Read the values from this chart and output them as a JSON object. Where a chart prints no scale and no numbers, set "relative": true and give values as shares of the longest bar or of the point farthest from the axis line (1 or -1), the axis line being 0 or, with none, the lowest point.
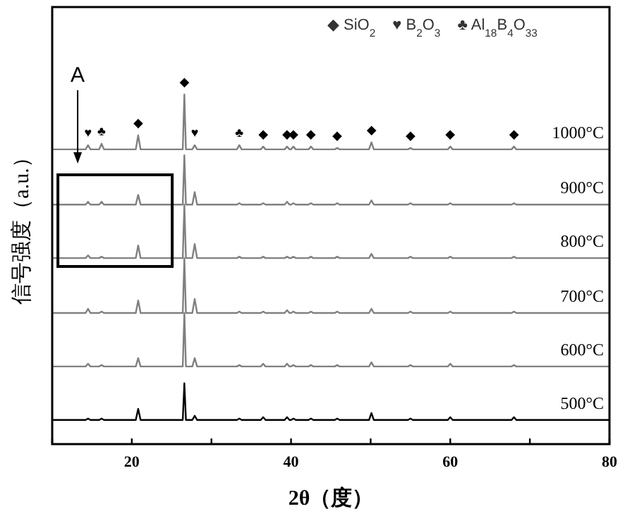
{
  "chart_data": {
    "type": "line",
    "relative": true,
    "xlabel": "2θ（度）",
    "ylabel": "信号强度（a.u.）",
    "xlim": [
      10,
      80
    ],
    "xticks": [
      {
        "value": 10,
        "label": null
      },
      20,
      {
        "value": 30,
        "label": null
      },
      40,
      {
        "value": 50,
        "label": null
      },
      60,
      {
        "value": 70,
        "label": null
      },
      80
    ],
    "x": [
      10,
      14.2,
      14.5,
      14.8,
      15.9,
      16.2,
      16.5,
      20.5,
      20.8,
      21.1,
      26.4,
      26.6,
      26.8,
      27.6,
      27.9,
      28.2,
      33.2,
      33.5,
      33.8,
      36.2,
      36.5,
      36.8,
      39.2,
      39.5,
      39.8,
      40.0,
      40.3,
      40.6,
      42.2,
      42.5,
      42.8,
      45.5,
      45.8,
      46.1,
      49.8,
      50.1,
      50.4,
      54.7,
      55,
      55.3,
      59.7,
      60,
      60.3,
      67.7,
      68,
      68.3,
      80
    ],
    "series": [
      {
        "name": "1000°C",
        "color": "#808080",
        "values": [
          0.843,
          0.843,
          0.855,
          0.843,
          0.843,
          0.859,
          0.843,
          0.843,
          0.883,
          0.843,
          0.843,
          1.0,
          0.843,
          0.843,
          0.855,
          0.843,
          0.843,
          0.855,
          0.843,
          0.843,
          0.851,
          0.843,
          0.843,
          0.851,
          0.843,
          0.843,
          0.851,
          0.843,
          0.843,
          0.851,
          0.843,
          0.843,
          0.847,
          0.843,
          0.843,
          0.863,
          0.843,
          0.843,
          0.847,
          0.843,
          0.843,
          0.851,
          0.843,
          0.843,
          0.851,
          0.843,
          0.843
        ]
      },
      {
        "name": "900°C",
        "color": "#808080",
        "values": [
          0.685,
          0.685,
          0.693,
          0.685,
          0.685,
          0.693,
          0.685,
          0.685,
          0.713,
          0.685,
          0.685,
          0.826,
          0.685,
          0.685,
          0.721,
          0.685,
          0.685,
          0.689,
          0.685,
          0.685,
          0.689,
          0.685,
          0.685,
          0.693,
          0.685,
          0.685,
          0.689,
          0.685,
          0.685,
          0.689,
          0.685,
          0.685,
          0.689,
          0.685,
          0.685,
          0.697,
          0.685,
          0.685,
          0.689,
          0.685,
          0.685,
          0.689,
          0.685,
          0.685,
          0.689,
          0.685,
          0.685
        ]
      },
      {
        "name": "800°C",
        "color": "#808080",
        "values": [
          0.532,
          0.532,
          0.54,
          0.532,
          0.532,
          0.536,
          0.532,
          0.532,
          0.568,
          0.532,
          0.532,
          0.685,
          0.532,
          0.532,
          0.572,
          0.532,
          0.532,
          0.536,
          0.532,
          0.532,
          0.536,
          0.532,
          0.532,
          0.536,
          0.532,
          0.532,
          0.536,
          0.532,
          0.532,
          0.536,
          0.532,
          0.532,
          0.536,
          0.532,
          0.532,
          0.544,
          0.532,
          0.532,
          0.536,
          0.532,
          0.532,
          0.536,
          0.532,
          0.532,
          0.536,
          0.532,
          0.532
        ]
      },
      {
        "name": "700°C",
        "color": "#808080",
        "values": [
          0.375,
          0.375,
          0.387,
          0.375,
          0.375,
          0.379,
          0.375,
          0.375,
          0.411,
          0.375,
          0.375,
          0.532,
          0.375,
          0.375,
          0.415,
          0.375,
          0.375,
          0.379,
          0.375,
          0.375,
          0.379,
          0.375,
          0.375,
          0.383,
          0.375,
          0.375,
          0.379,
          0.375,
          0.375,
          0.379,
          0.375,
          0.375,
          0.379,
          0.375,
          0.375,
          0.387,
          0.375,
          0.375,
          0.379,
          0.375,
          0.375,
          0.379,
          0.375,
          0.375,
          0.379,
          0.375,
          0.375
        ]
      },
      {
        "name": "600°C",
        "color": "#808080",
        "values": [
          0.222,
          0.222,
          0.23,
          0.222,
          0.222,
          0.226,
          0.222,
          0.222,
          0.246,
          0.222,
          0.222,
          0.375,
          0.222,
          0.222,
          0.246,
          0.222,
          0.222,
          0.226,
          0.222,
          0.222,
          0.23,
          0.222,
          0.222,
          0.23,
          0.222,
          0.222,
          0.226,
          0.222,
          0.222,
          0.226,
          0.222,
          0.222,
          0.226,
          0.222,
          0.222,
          0.234,
          0.222,
          0.222,
          0.226,
          0.222,
          0.222,
          0.23,
          0.222,
          0.222,
          0.226,
          0.222,
          0.222
        ]
      },
      {
        "name": "500°C",
        "color": "#000000",
        "values": [
          0.069,
          0.069,
          0.073,
          0.069,
          0.069,
          0.073,
          0.069,
          0.069,
          0.101,
          0.069,
          0.069,
          0.174,
          0.069,
          0.069,
          0.081,
          0.069,
          0.069,
          0.073,
          0.069,
          0.069,
          0.077,
          0.069,
          0.069,
          0.077,
          0.069,
          0.069,
          0.073,
          0.069,
          0.069,
          0.073,
          0.069,
          0.069,
          0.073,
          0.069,
          0.069,
          0.089,
          0.069,
          0.069,
          0.073,
          0.069,
          0.069,
          0.077,
          0.069,
          0.069,
          0.077,
          0.069,
          0.069
        ]
      }
    ],
    "annotations": [
      "A",
      "◆ SiO$_{2}$",
      "♥ B$_{2}$O$_{3}$",
      "♣ Al$_{18}$B$_{4}$O$_{33}$",
      {
        "text": "♥",
        "x": 14.5,
        "y": 0.855
      },
      {
        "text": "♣",
        "x": 16.2,
        "y": 0.859
      },
      {
        "text": "◆",
        "x": 20.8,
        "y": 0.883
      },
      {
        "text": "◆",
        "x": 26.6,
        "y": 1.0
      },
      {
        "text": "♥",
        "x": 27.9,
        "y": 0.855
      },
      {
        "text": "♣",
        "x": 33.5,
        "y": 0.855
      },
      {
        "text": "◆",
        "x": 36.5,
        "y": 0.851
      },
      {
        "text": "◆",
        "x": 39.5,
        "y": 0.851
      },
      {
        "text": "◆",
        "x": 40.3,
        "y": 0.851
      },
      {
        "text": "◆",
        "x": 42.5,
        "y": 0.851
      },
      {
        "text": "◆",
        "x": 45.8,
        "y": 0.847
      },
      {
        "text": "◆",
        "x": 50.1,
        "y": 0.863
      },
      {
        "text": "◆",
        "x": 55,
        "y": 0.847
      },
      {
        "text": "◆",
        "x": 60,
        "y": 0.851
      },
      {
        "text": "◆",
        "x": 68,
        "y": 0.851
      }
    ]
  }
}
